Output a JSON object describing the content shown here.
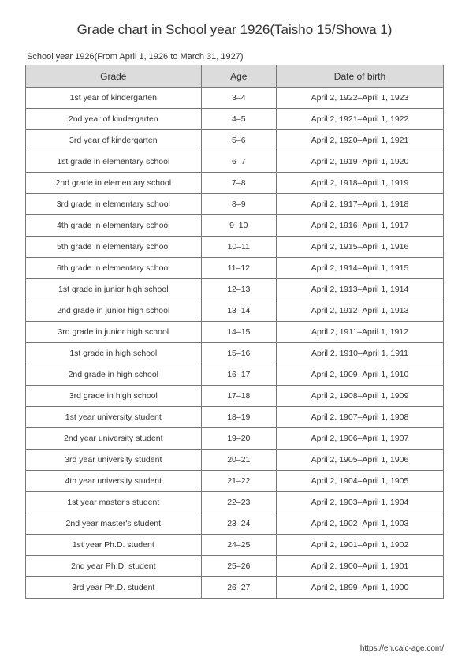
{
  "title": "Grade chart in School year 1926(Taisho 15/Showa 1)",
  "subtitle": "School year 1926(From April 1, 1926 to March 31, 1927)",
  "footer": "https://en.calc-age.com/",
  "table": {
    "columns": [
      "Grade",
      "Age",
      "Date of birth"
    ],
    "rows": [
      [
        "1st year of kindergarten",
        "3–4",
        "April 2, 1922–April 1, 1923"
      ],
      [
        "2nd year of kindergarten",
        "4–5",
        "April 2, 1921–April 1, 1922"
      ],
      [
        "3rd year of kindergarten",
        "5–6",
        "April 2, 1920–April 1, 1921"
      ],
      [
        "1st grade in elementary school",
        "6–7",
        "April 2, 1919–April 1, 1920"
      ],
      [
        "2nd grade in elementary school",
        "7–8",
        "April 2, 1918–April 1, 1919"
      ],
      [
        "3rd grade in elementary school",
        "8–9",
        "April 2, 1917–April 1, 1918"
      ],
      [
        "4th grade in elementary school",
        "9–10",
        "April 2, 1916–April 1, 1917"
      ],
      [
        "5th grade in elementary school",
        "10–11",
        "April 2, 1915–April 1, 1916"
      ],
      [
        "6th grade in elementary school",
        "11–12",
        "April 2, 1914–April 1, 1915"
      ],
      [
        "1st grade in junior high school",
        "12–13",
        "April 2, 1913–April 1, 1914"
      ],
      [
        "2nd grade in junior high school",
        "13–14",
        "April 2, 1912–April 1, 1913"
      ],
      [
        "3rd grade in junior high school",
        "14–15",
        "April 2, 1911–April 1, 1912"
      ],
      [
        "1st grade in high school",
        "15–16",
        "April 2, 1910–April 1, 1911"
      ],
      [
        "2nd grade in high school",
        "16–17",
        "April 2, 1909–April 1, 1910"
      ],
      [
        "3rd grade in high school",
        "17–18",
        "April 2, 1908–April 1, 1909"
      ],
      [
        "1st year university student",
        "18–19",
        "April 2, 1907–April 1, 1908"
      ],
      [
        "2nd year university student",
        "19–20",
        "April 2, 1906–April 1, 1907"
      ],
      [
        "3rd year university student",
        "20–21",
        "April 2, 1905–April 1, 1906"
      ],
      [
        "4th year university student",
        "21–22",
        "April 2, 1904–April 1, 1905"
      ],
      [
        "1st year master's student",
        "22–23",
        "April 2, 1903–April 1, 1904"
      ],
      [
        "2nd year master's student",
        "23–24",
        "April 2, 1902–April 1, 1903"
      ],
      [
        "1st year Ph.D. student",
        "24–25",
        "April 2, 1901–April 1, 1902"
      ],
      [
        "2nd year Ph.D. student",
        "25–26",
        "April 2, 1900–April 1, 1901"
      ],
      [
        "3rd year Ph.D. student",
        "26–27",
        "April 2, 1899–April 1, 1900"
      ]
    ]
  }
}
